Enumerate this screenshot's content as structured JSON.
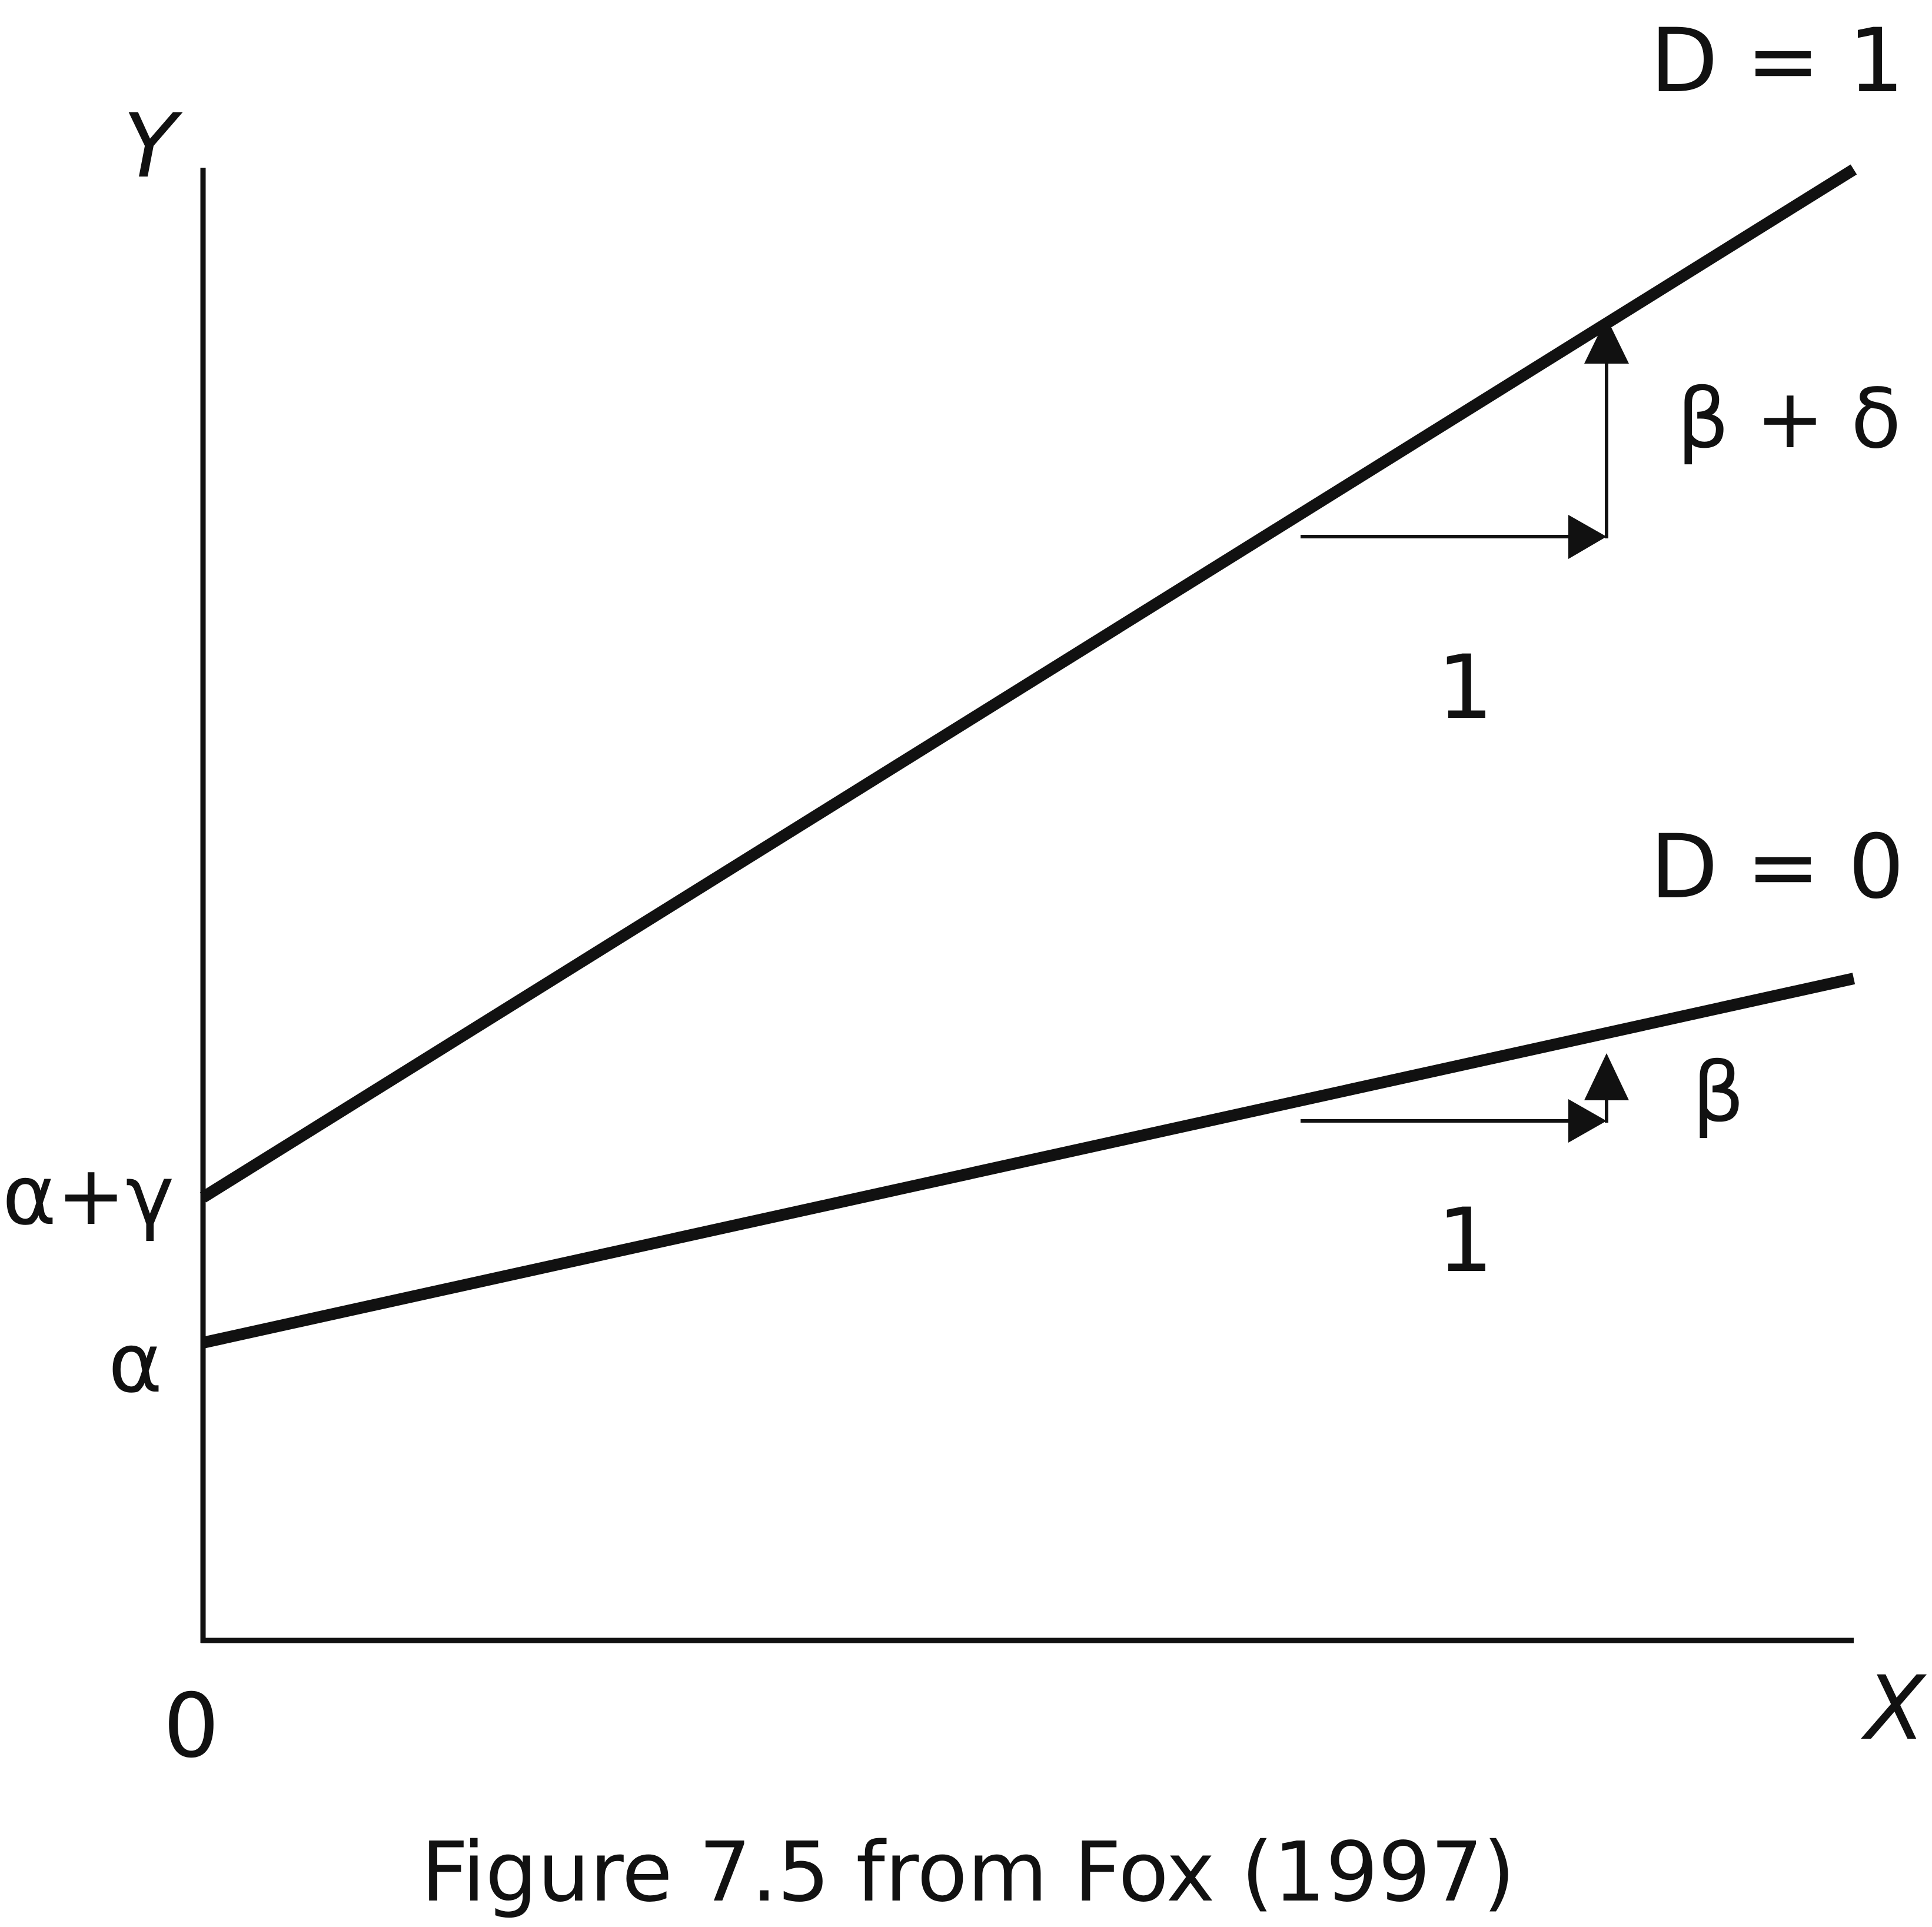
{
  "figure": {
    "caption": "Figure 7.5 from Fox (1997)",
    "axes": {
      "y_label": "Y",
      "x_label": "X",
      "origin_label": "0"
    },
    "lines": {
      "d1": {
        "label": "D = 1",
        "intercept_label": "α+γ",
        "slope_label": "β + δ",
        "run_label": "1"
      },
      "d0": {
        "label": "D = 0",
        "intercept_label": "α",
        "slope_label": "β",
        "run_label": "1"
      }
    },
    "colors": {
      "ink": "#111111",
      "background": "#ffffff"
    }
  }
}
